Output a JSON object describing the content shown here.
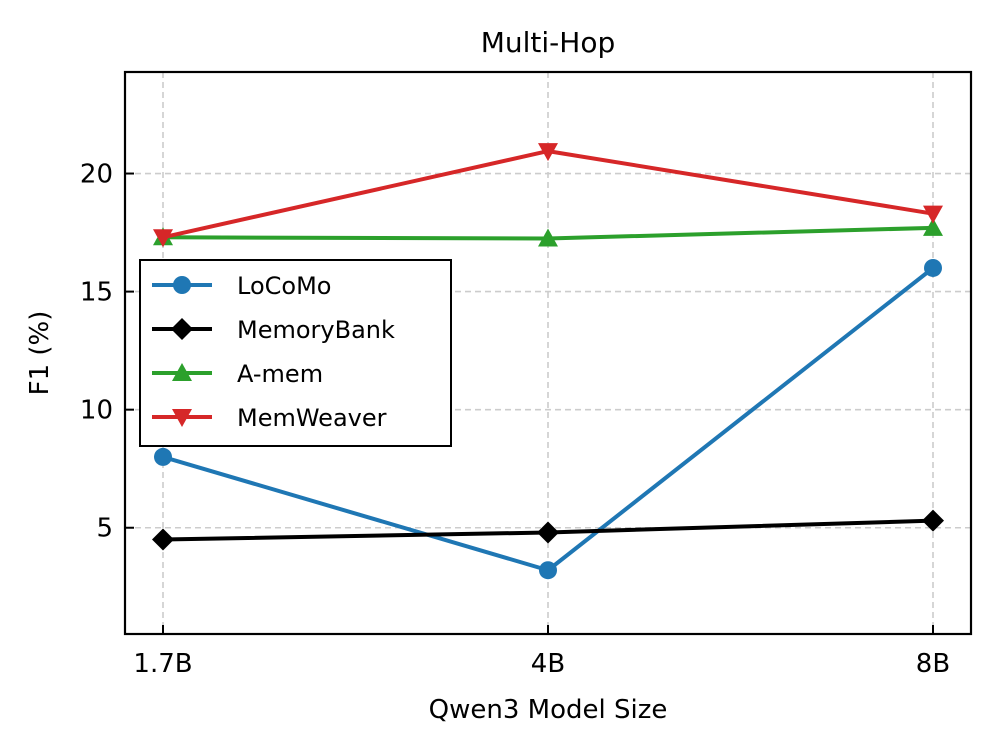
{
  "chart_data": {
    "type": "line",
    "title": "Multi-Hop",
    "xlabel": "Qwen3 Model Size",
    "ylabel": "F1 (%)",
    "categories": [
      "1.7B",
      "4B",
      "8B"
    ],
    "ylim": [
      0.5,
      24.3
    ],
    "yticks": [
      5,
      10,
      15,
      20
    ],
    "grid": true,
    "legend_position": "center-left",
    "series": [
      {
        "name": "LoCoMo",
        "values": [
          8.0,
          3.2,
          16.0
        ],
        "color": "#1f77b4",
        "marker": "circle"
      },
      {
        "name": "MemoryBank",
        "values": [
          4.5,
          4.8,
          5.3
        ],
        "color": "#000000",
        "marker": "diamond"
      },
      {
        "name": "A-mem",
        "values": [
          17.3,
          17.25,
          17.7
        ],
        "color": "#2ca02c",
        "marker": "triangle-up"
      },
      {
        "name": "MemWeaver",
        "values": [
          17.3,
          20.95,
          18.3
        ],
        "color": "#d62728",
        "marker": "triangle-down"
      }
    ]
  }
}
